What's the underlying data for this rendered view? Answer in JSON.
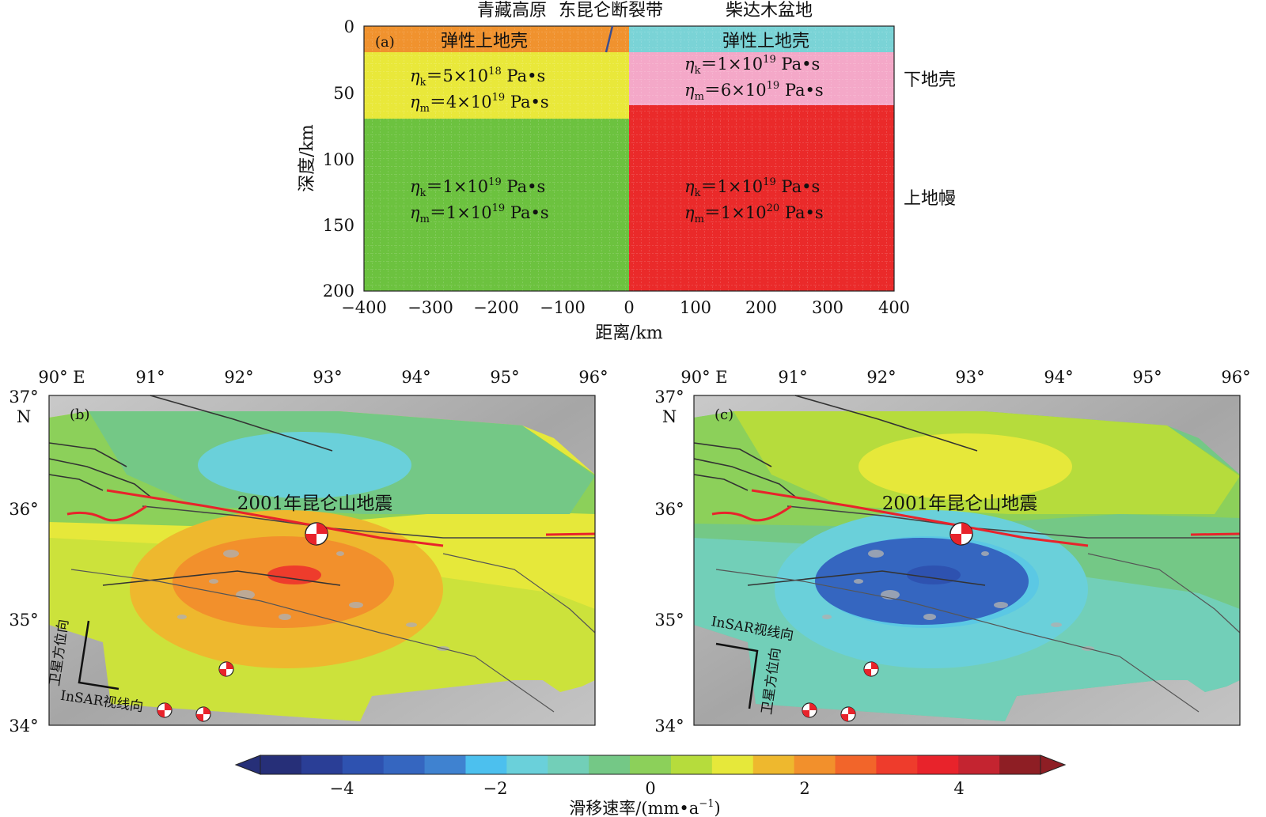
{
  "panel_a": {
    "top_labels": {
      "plateau": "青藏高原",
      "fault_zone": "东昆仑断裂带",
      "basin": "柴达木盆地"
    },
    "label": "(a)",
    "y_axis_title": "深度/km",
    "x_axis_title": "距离/km",
    "y_ticks": [
      "0",
      "50",
      "100",
      "150",
      "200"
    ],
    "x_ticks": [
      "−400",
      "−300",
      "−200",
      "−100",
      "0",
      "100",
      "200",
      "300",
      "400"
    ],
    "layer_labels": {
      "upper_crust_left": "弹性上地壳",
      "upper_crust_right": "弹性上地壳",
      "lower_crust": "下地壳",
      "upper_mantle": "上地幔"
    },
    "viscosities": {
      "lower_crust_left": {
        "k_sym": "η",
        "k_sub": "k",
        "k_eq": "＝5×10",
        "k_exp": "18",
        "k_unit": " Pa•s",
        "m_sym": "η",
        "m_sub": "m",
        "m_eq": "＝4×10",
        "m_exp": "19",
        "m_unit": " Pa•s"
      },
      "lower_crust_right": {
        "k_sym": "η",
        "k_sub": "k",
        "k_eq": "＝1×10",
        "k_exp": "19",
        "k_unit": " Pa•s",
        "m_sym": "η",
        "m_sub": "m",
        "m_eq": "＝6×10",
        "m_exp": "19",
        "m_unit": " Pa•s"
      },
      "mantle_left": {
        "k_sym": "η",
        "k_sub": "k",
        "k_eq": "＝1×10",
        "k_exp": "19",
        "k_unit": " Pa•s",
        "m_sym": "η",
        "m_sub": "m",
        "m_eq": "＝1×10",
        "m_exp": "19",
        "m_unit": " Pa•s"
      },
      "mantle_right": {
        "k_sym": "η",
        "k_sub": "k",
        "k_eq": "＝1×10",
        "k_exp": "19",
        "k_unit": " Pa•s",
        "m_sym": "η",
        "m_sub": "m",
        "m_eq": "＝1×10",
        "m_exp": "20",
        "m_unit": " Pa•s"
      }
    },
    "colors": {
      "upper_crust_left": "#f0922e",
      "upper_crust_right": "#7ad3d6",
      "lower_crust_left": "#e9e83a",
      "lower_crust_right": "#f4a8c8",
      "mantle_left": "#6cc23f",
      "mantle_right": "#ea2a2a"
    }
  },
  "map_b": {
    "label": "(b)",
    "earthquake_label": "2001年昆仑山地震",
    "orientation_labels": {
      "azimuth": "卫星方位向",
      "los": "InSAR视线向"
    }
  },
  "map_c": {
    "label": "(c)",
    "earthquake_label": "2001年昆仑山地震",
    "orientation_labels": {
      "azimuth": "卫星方位向",
      "los": "InSAR视线向"
    }
  },
  "map_axes": {
    "lon_ticks": [
      "90° E",
      "91°",
      "92°",
      "93°",
      "94°",
      "95°",
      "96°"
    ],
    "lat_ticks": [
      "37°",
      "36°",
      "35°",
      "34°"
    ],
    "north_label": "N"
  },
  "colorbar": {
    "ticks": [
      "−4",
      "−2",
      "0",
      "2",
      "4"
    ],
    "title": "滑移速率/(mm•a",
    "title_exp": "−1",
    "title_close": ")",
    "colors": [
      "#262f78",
      "#2a3e96",
      "#2e52b0",
      "#3566c0",
      "#3f82d0",
      "#4cc0ee",
      "#6ad0da",
      "#72cfb8",
      "#74c886",
      "#8cd05a",
      "#b6dc3c",
      "#e6e83a",
      "#eeb82e",
      "#f2902c",
      "#f2652a",
      "#ee3c2c",
      "#e8232b",
      "#c42430",
      "#8e1e24"
    ]
  }
}
